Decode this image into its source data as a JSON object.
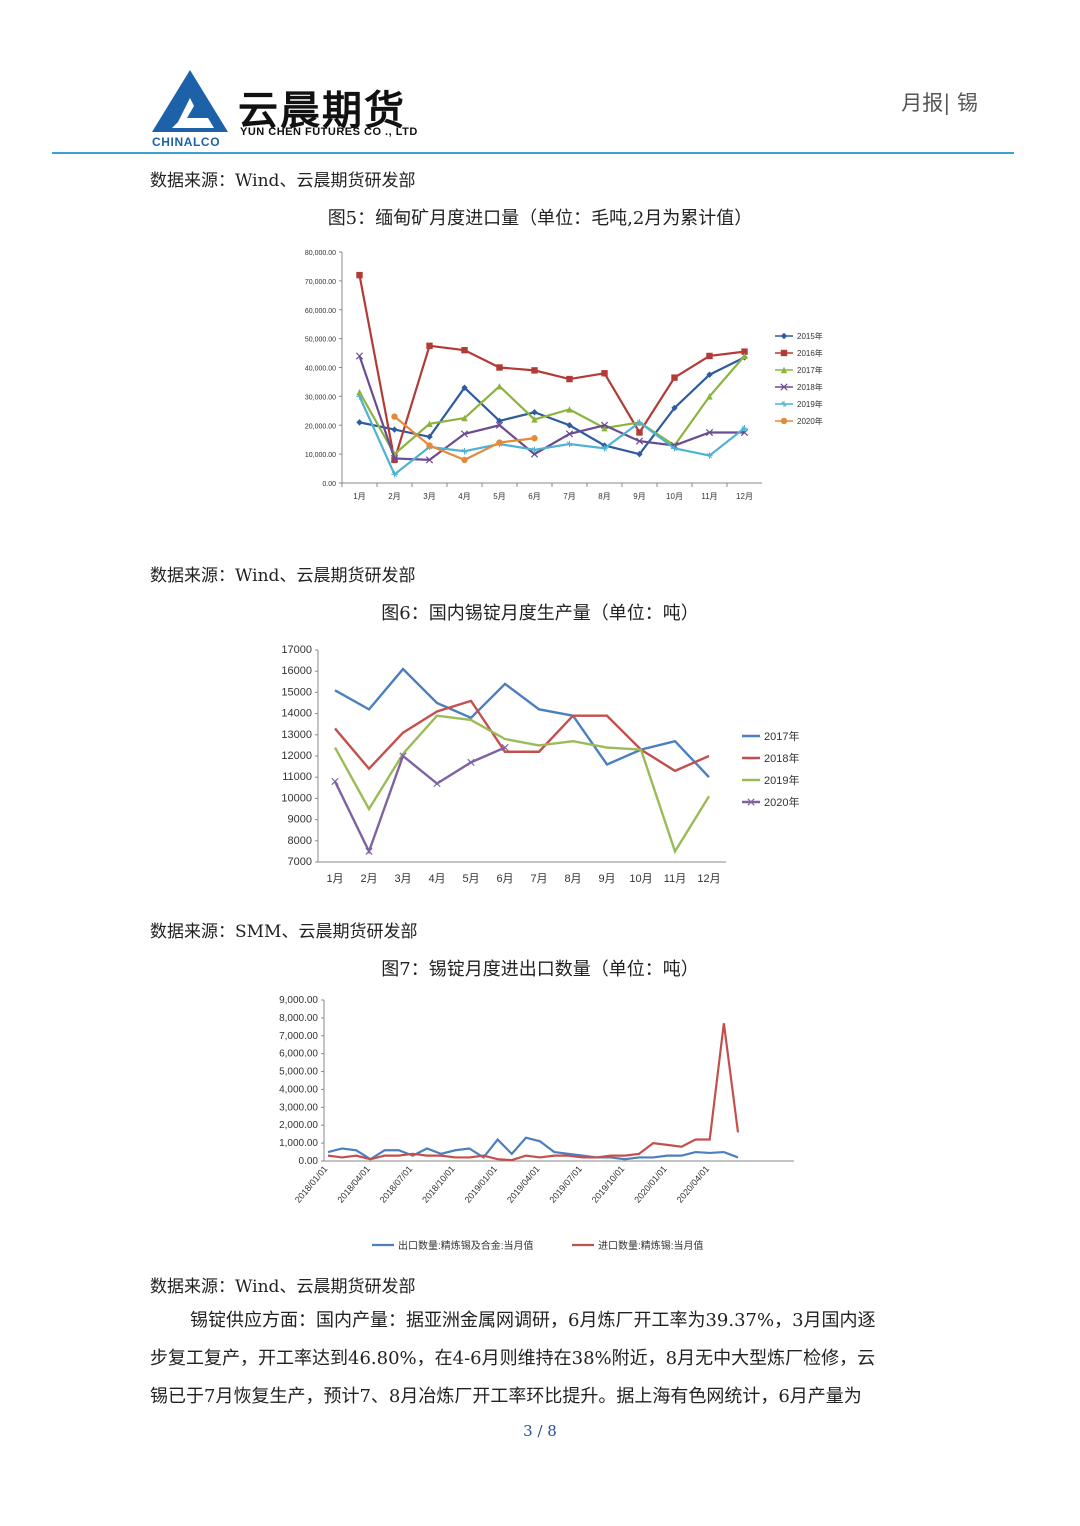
{
  "header": {
    "company_cn": "云晨期货",
    "company_en": "YUN CHEN FUTURES CO ., LTD",
    "brand": "CHINALCO",
    "report_type": "月报| 锡"
  },
  "sources": {
    "s1": "数据来源：Wind、云晨期货研发部",
    "s2": "数据来源：Wind、云晨期货研发部",
    "s3": "数据来源：SMM、云晨期货研发部",
    "s4": "数据来源：Wind、云晨期货研发部"
  },
  "figures": {
    "f5_title": "图5：缅甸矿月度进口量（单位：毛吨,2月为累计值）",
    "f6_title": "图6：国内锡锭月度生产量（单位：吨）",
    "f7_title": "图7：锡锭月度进出口数量（单位：吨）"
  },
  "paragraph": {
    "line1": "锡锭供应方面：国内产量：据亚洲金属网调研，6月炼厂开工率为39.37%，3月国内逐",
    "line2": "步复工复产，开工率达到46.80%，在4-6月则维持在38%附近，8月无中大型炼厂检修，云",
    "line3": "锡已于7月恢复生产，预计7、8月冶炼厂开工率环比提升。据上海有色网统计，6月产量为"
  },
  "page": {
    "number": "3 / 8"
  },
  "chart_data": [
    {
      "id": "fig5",
      "type": "line",
      "categories": [
        "1月",
        "2月",
        "3月",
        "4月",
        "5月",
        "6月",
        "7月",
        "8月",
        "9月",
        "10月",
        "11月",
        "12月"
      ],
      "ylim": [
        0,
        80000
      ],
      "yticks": [
        "0.00",
        "10,000.00",
        "20,000.00",
        "30,000.00",
        "40,000.00",
        "50,000.00",
        "60,000.00",
        "70,000.00",
        "80,000.00"
      ],
      "legend_position": "right",
      "series": [
        {
          "name": "2015年",
          "color": "#2e5c9e",
          "marker": "diamond",
          "values": [
            21000,
            18500,
            16000,
            33000,
            21500,
            24500,
            20000,
            13000,
            10000,
            26000,
            37500,
            43500
          ]
        },
        {
          "name": "2016年",
          "color": "#b23b37",
          "marker": "square",
          "values": [
            72000,
            8000,
            47500,
            46000,
            40000,
            39000,
            36000,
            38000,
            17500,
            36500,
            44000,
            45500
          ]
        },
        {
          "name": "2017年",
          "color": "#8db33f",
          "marker": "triangle",
          "values": [
            31500,
            10000,
            20500,
            22500,
            33500,
            22000,
            25500,
            19000,
            21000,
            13000,
            30000,
            44000
          ]
        },
        {
          "name": "2018年",
          "color": "#6c4c91",
          "marker": "x",
          "values": [
            44000,
            8500,
            8000,
            17000,
            20000,
            10000,
            17000,
            20000,
            14500,
            13000,
            17500,
            17500
          ]
        },
        {
          "name": "2019年",
          "color": "#4fb2d3",
          "marker": "star",
          "values": [
            30000,
            3000,
            12500,
            11000,
            13500,
            11500,
            13500,
            12000,
            21000,
            12000,
            9500,
            19000
          ]
        },
        {
          "name": "2020年",
          "color": "#e5893a",
          "marker": "circle",
          "values": [
            null,
            23000,
            13000,
            8000,
            14000,
            15500,
            null,
            null,
            null,
            null,
            null,
            null
          ]
        }
      ]
    },
    {
      "id": "fig6",
      "type": "line",
      "categories": [
        "1月",
        "2月",
        "3月",
        "4月",
        "5月",
        "6月",
        "7月",
        "8月",
        "9月",
        "10月",
        "11月",
        "12月"
      ],
      "ylim": [
        7000,
        17000
      ],
      "yticks": [
        "7000",
        "8000",
        "9000",
        "10000",
        "11000",
        "12000",
        "13000",
        "14000",
        "15000",
        "16000",
        "17000"
      ],
      "legend_position": "right",
      "series": [
        {
          "name": "2017年",
          "color": "#4c7fbf",
          "values": [
            15100,
            14200,
            16100,
            14500,
            13800,
            15400,
            14200,
            13900,
            11600,
            12300,
            12700,
            11000
          ]
        },
        {
          "name": "2018年",
          "color": "#c4504d",
          "values": [
            13300,
            11400,
            13100,
            14100,
            14600,
            12200,
            12200,
            13900,
            13900,
            12300,
            11300,
            12000
          ]
        },
        {
          "name": "2019年",
          "color": "#9bbb59",
          "values": [
            12400,
            9500,
            12100,
            13900,
            13700,
            12800,
            12500,
            12700,
            12400,
            12300,
            7500,
            10100
          ]
        },
        {
          "name": "2020年",
          "color": "#7f63a1",
          "values": [
            10800,
            7500,
            12000,
            10700,
            11700,
            12400,
            null,
            null,
            null,
            null,
            null,
            null
          ]
        }
      ]
    },
    {
      "id": "fig7",
      "type": "line",
      "x_tick_labels": [
        "2018/01/01",
        "2018/04/01",
        "2018/07/01",
        "2018/10/01",
        "2019/01/01",
        "2019/04/01",
        "2019/07/01",
        "2019/10/01",
        "2020/01/01",
        "2020/04/01"
      ],
      "ylim": [
        0,
        9000
      ],
      "yticks": [
        "0.00",
        "1,000.00",
        "2,000.00",
        "3,000.00",
        "4,000.00",
        "5,000.00",
        "6,000.00",
        "7,000.00",
        "8,000.00",
        "9,000.00"
      ],
      "legend_position": "bottom",
      "series": [
        {
          "name": "出口数量:精炼锡及合金:当月值",
          "color": "#4c7fbf",
          "values": [
            500,
            700,
            600,
            100,
            600,
            600,
            300,
            700,
            400,
            600,
            700,
            200,
            1200,
            400,
            1300,
            1100,
            500,
            400,
            300,
            200,
            200,
            100,
            200,
            200,
            300,
            300,
            500,
            450,
            500,
            200
          ]
        },
        {
          "name": "进口数量:精炼锡:当月值",
          "color": "#c4504d",
          "values": [
            300,
            200,
            300,
            100,
            300,
            300,
            400,
            300,
            300,
            200,
            200,
            300,
            100,
            50,
            300,
            200,
            300,
            300,
            200,
            200,
            300,
            300,
            400,
            1000,
            900,
            800,
            1200,
            1200,
            7700,
            1600
          ]
        }
      ]
    }
  ]
}
